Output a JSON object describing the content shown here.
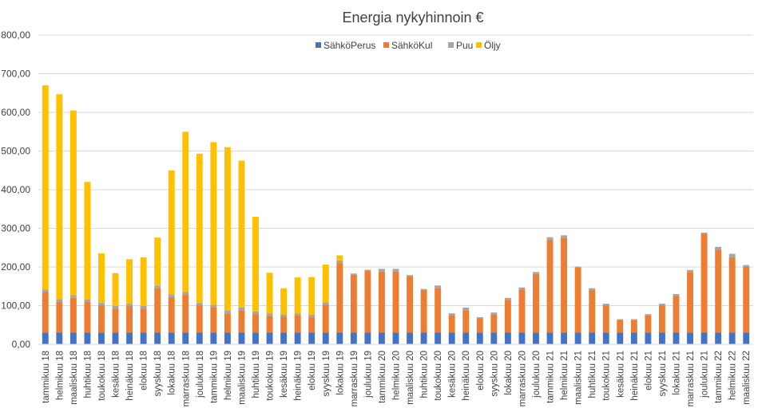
{
  "chart_data": {
    "type": "bar",
    "stacked": true,
    "title": "Energia nykyhinnoin €",
    "xlabel": "",
    "ylabel": "",
    "ylim": [
      0,
      800
    ],
    "yticks": [
      "0,00",
      "100,00",
      "200,00",
      "300,00",
      "400,00",
      "500,00",
      "600,00",
      "700,00",
      "800,00"
    ],
    "grid": true,
    "legend_position": "top",
    "categories": [
      "tammikuu 18",
      "helmikuu 18",
      "maaliskuu 18",
      "huhtikuu 18",
      "toukokuu 18",
      "kesäkuu 18",
      "heinäkuu 18",
      "elokuu 18",
      "syyskuu 18",
      "lokakuu 18",
      "marraskuu 18",
      "joulukuu 18",
      "tammikuu 19",
      "helmikuu 19",
      "maaliskuu 19",
      "huhtikuu 19",
      "toukokuu 19",
      "kesäkuu 19",
      "heinäkuu 19",
      "elokuu 19",
      "syyskuu 19",
      "lokakuu 19",
      "marraskuu 19",
      "joulukuu 19",
      "tammikuu 20",
      "helmikuu 20",
      "maaliskuu 20",
      "huhtikuu 20",
      "toukokuu 20",
      "kesäkuu 20",
      "heinäkuu 20",
      "elokuu 20",
      "syyskuu 20",
      "lokakuu 20",
      "marraskuu 20",
      "joulukuu 20",
      "tammikuu 21",
      "helmikuu 21",
      "maaliskuu 21",
      "huhtikuu 21",
      "toukokuu 21",
      "kesäkuu 21",
      "heinäkuu 21",
      "elokuu 21",
      "syyskuu 21",
      "lokakuu 21",
      "marraskuu 21",
      "joulukuu 21",
      "tammikuu 22",
      "helmikuu 22",
      "maaliskuu 22"
    ],
    "series": [
      {
        "name": "SähköPerus",
        "color": "#4472C4",
        "values": [
          30,
          30,
          30,
          30,
          30,
          30,
          30,
          30,
          30,
          30,
          30,
          30,
          30,
          30,
          30,
          30,
          30,
          30,
          30,
          30,
          30,
          30,
          30,
          30,
          30,
          30,
          30,
          30,
          30,
          30,
          30,
          30,
          30,
          30,
          30,
          30,
          30,
          30,
          30,
          30,
          30,
          30,
          30,
          30,
          30,
          30,
          30,
          30,
          30,
          30,
          30
        ]
      },
      {
        "name": "SähköKul",
        "color": "#ED7D31",
        "values": [
          105,
          80,
          90,
          80,
          70,
          62,
          68,
          62,
          115,
          92,
          98,
          70,
          65,
          50,
          58,
          48,
          43,
          42,
          45,
          40,
          72,
          180,
          150,
          160,
          158,
          158,
          146,
          110,
          115,
          45,
          58,
          37,
          47,
          85,
          112,
          152,
          240,
          245,
          168,
          110,
          70,
          32,
          32,
          45,
          70,
          95,
          157,
          256,
          215,
          195,
          170
        ]
      },
      {
        "name": "Puu",
        "color": "#A5A5A5",
        "values": [
          7,
          7,
          7,
          7,
          7,
          7,
          7,
          7,
          7,
          7,
          7,
          7,
          7,
          7,
          7,
          7,
          7,
          5,
          5,
          7,
          7,
          7,
          3,
          3,
          7,
          7,
          3,
          3,
          7,
          5,
          7,
          3,
          5,
          5,
          5,
          5,
          7,
          7,
          3,
          5,
          5,
          3,
          3,
          3,
          5,
          5,
          5,
          3,
          7,
          9,
          5
        ]
      },
      {
        "name": "Öljy",
        "color": "#FFC000",
        "values": [
          528,
          530,
          478,
          303,
          128,
          85,
          115,
          126,
          124,
          321,
          415,
          386,
          421,
          423,
          380,
          245,
          105,
          68,
          93,
          97,
          97,
          13,
          0,
          0,
          0,
          0,
          0,
          0,
          0,
          0,
          0,
          0,
          0,
          0,
          0,
          0,
          0,
          0,
          0,
          0,
          0,
          0,
          0,
          0,
          0,
          0,
          0,
          0,
          0,
          0,
          0
        ]
      }
    ]
  }
}
